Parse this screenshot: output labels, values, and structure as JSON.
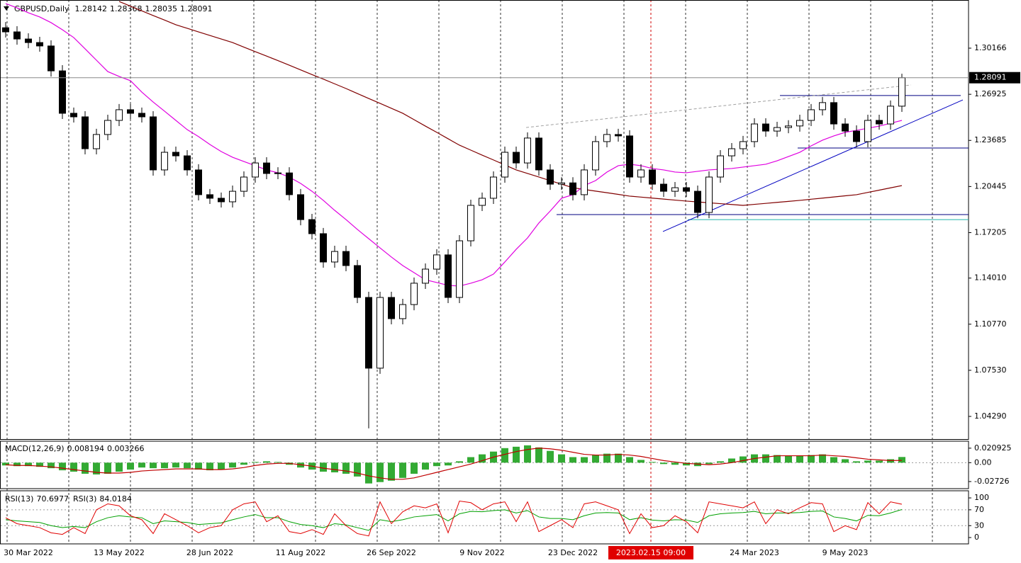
{
  "chart_data": [
    {
      "type": "candlestick",
      "title": "GBPUSD,Daily",
      "header_ohlc": [
        1.28142,
        1.28368,
        1.28035,
        1.28091
      ],
      "crosshair": "2023.02.15 09:00",
      "categories": [
        null,
        null,
        "30 Mar 2022",
        null,
        null,
        null,
        null,
        null,
        null,
        null,
        "13 May 2022",
        null,
        null,
        null,
        null,
        null,
        null,
        null,
        "28 Jun 2022",
        null,
        null,
        null,
        null,
        null,
        null,
        null,
        "11 Aug 2022",
        null,
        null,
        null,
        null,
        null,
        null,
        null,
        "26 Sep 2022",
        null,
        null,
        null,
        null,
        null,
        null,
        null,
        "9 Nov 2022",
        null,
        null,
        null,
        null,
        null,
        null,
        null,
        "23 Dec 2022",
        null,
        null,
        null,
        null,
        null,
        null,
        null,
        null,
        null,
        null,
        null,
        null,
        null,
        null,
        null,
        "24 Mar 2023",
        null,
        null,
        null,
        null,
        null,
        null,
        null,
        "9 May 2023",
        null,
        null,
        null,
        null,
        null
      ],
      "open": [
        1.316,
        1.3131,
        1.3081,
        1.3056,
        1.3032,
        1.2857,
        1.2559,
        1.2534,
        1.231,
        1.241,
        1.2509,
        1.2584,
        1.2559,
        1.2534,
        1.2161,
        1.2285,
        1.226,
        1.2161,
        1.1987,
        1.1962,
        1.1937,
        1.2011,
        1.2111,
        1.221,
        1.2136,
        1.214,
        1.1987,
        1.1812,
        1.1713,
        1.1514,
        1.1588,
        1.1489,
        1.1265,
        1.0768,
        1.1265,
        1.1116,
        1.1215,
        1.1365,
        1.1464,
        1.1564,
        1.1265,
        1.1663,
        1.1912,
        1.1962,
        1.2111,
        1.2285,
        1.221,
        1.2385,
        1.2161,
        1.2061,
        1.207,
        1.1987,
        1.2161,
        1.236,
        1.241,
        1.24,
        1.2111,
        1.2161,
        1.2061,
        1.2011,
        1.2036,
        1.2011,
        1.1862,
        1.2111,
        1.226,
        1.231,
        1.236,
        1.2484,
        1.2434,
        1.2459,
        1.247,
        1.2509,
        1.2584,
        1.2634,
        1.2484,
        1.2434,
        1.236,
        1.2509,
        1.2484,
        1.2609
      ],
      "high": [
        1.32,
        1.3171,
        1.3121,
        1.3096,
        1.3072,
        1.2897,
        1.2599,
        1.2574,
        1.245,
        1.2549,
        1.2624,
        1.2624,
        1.2599,
        1.2574,
        1.2325,
        1.2325,
        1.23,
        1.2201,
        1.2027,
        1.2002,
        1.2051,
        1.2151,
        1.225,
        1.225,
        1.218,
        1.218,
        1.2027,
        1.1852,
        1.1753,
        1.1628,
        1.1628,
        1.1529,
        1.1305,
        1.1305,
        1.1305,
        1.1255,
        1.1405,
        1.1504,
        1.1604,
        1.1604,
        1.1703,
        1.1952,
        1.2002,
        1.2151,
        1.2325,
        1.2325,
        1.2425,
        1.2425,
        1.2201,
        1.211,
        1.211,
        1.2201,
        1.24,
        1.245,
        1.245,
        1.244,
        1.2201,
        1.2201,
        1.2101,
        1.2076,
        1.2076,
        1.2051,
        1.2151,
        1.23,
        1.235,
        1.24,
        1.2524,
        1.2524,
        1.2499,
        1.251,
        1.2549,
        1.2624,
        1.2674,
        1.2674,
        1.2524,
        1.2474,
        1.2549,
        1.2549,
        1.2649,
        1.28368
      ],
      "low": [
        1.3091,
        1.3041,
        1.3016,
        1.2992,
        1.2817,
        1.2519,
        1.2494,
        1.227,
        1.227,
        1.237,
        1.2469,
        1.2519,
        1.2494,
        1.2121,
        1.2121,
        1.222,
        1.2121,
        1.1947,
        1.1922,
        1.1897,
        1.1897,
        1.1971,
        1.2071,
        1.2096,
        1.2096,
        1.1947,
        1.1772,
        1.1673,
        1.1474,
        1.1474,
        1.1449,
        1.1225,
        1.0345,
        1.0728,
        1.1076,
        1.1076,
        1.1175,
        1.1325,
        1.1424,
        1.1225,
        1.1225,
        1.1623,
        1.1872,
        1.1922,
        1.2071,
        1.217,
        1.217,
        1.2121,
        1.2021,
        1.2021,
        1.1947,
        1.1947,
        1.2121,
        1.232,
        1.236,
        1.2071,
        1.2071,
        1.2021,
        1.1971,
        1.1971,
        1.1971,
        1.1822,
        1.1822,
        1.2071,
        1.222,
        1.227,
        1.232,
        1.2394,
        1.2394,
        1.2419,
        1.243,
        1.2469,
        1.2544,
        1.2444,
        1.2394,
        1.232,
        1.232,
        1.2444,
        1.2444,
        1.2569
      ],
      "close": [
        1.3131,
        1.3081,
        1.3056,
        1.3032,
        1.2857,
        1.2559,
        1.2534,
        1.231,
        1.241,
        1.2509,
        1.2584,
        1.2559,
        1.2534,
        1.2161,
        1.2285,
        1.226,
        1.2161,
        1.1987,
        1.1962,
        1.1937,
        1.2011,
        1.2111,
        1.221,
        1.2136,
        1.214,
        1.1987,
        1.1812,
        1.1713,
        1.1514,
        1.1588,
        1.1489,
        1.1265,
        1.0768,
        1.1265,
        1.1116,
        1.1215,
        1.1365,
        1.1464,
        1.1564,
        1.1265,
        1.1663,
        1.1912,
        1.1962,
        1.2111,
        1.2285,
        1.221,
        1.2385,
        1.2161,
        1.2061,
        1.207,
        1.1987,
        1.2161,
        1.236,
        1.241,
        1.24,
        1.2111,
        1.2161,
        1.2061,
        1.2011,
        1.2036,
        1.2011,
        1.1862,
        1.2111,
        1.226,
        1.231,
        1.236,
        1.2484,
        1.2434,
        1.2459,
        1.247,
        1.2509,
        1.2584,
        1.2634,
        1.2484,
        1.2434,
        1.236,
        1.2509,
        1.2484,
        1.2609,
        1.28091
      ],
      "series": [
        {
          "color": "#800000",
          "values": [
            null,
            null,
            null,
            null,
            null,
            null,
            null,
            null,
            null,
            null,
            1.3345,
            1.3312,
            1.3279,
            1.3246,
            1.3214,
            1.3181,
            1.3156,
            1.3131,
            1.3106,
            1.3081,
            1.3056,
            1.3024,
            1.2992,
            1.2961,
            1.2929,
            1.2897,
            1.2864,
            1.2831,
            1.2799,
            1.2766,
            1.2733,
            1.2698,
            1.2663,
            1.2629,
            1.2594,
            1.2559,
            1.2514,
            1.2469,
            1.2425,
            1.238,
            1.2335,
            1.23,
            1.2265,
            1.2231,
            1.2196,
            1.2161,
            1.2136,
            1.2111,
            1.2086,
            1.2061,
            1.2036,
            1.2024,
            1.2012,
            1.2001,
            1.1989,
            1.1977,
            1.197,
            1.1963,
            1.1956,
            1.1949,
            1.1942,
            1.1936,
            1.193,
            1.1924,
            1.1918,
            1.1912,
            1.1919,
            1.1926,
            1.1933,
            1.194,
            1.1947,
            1.1955,
            1.1963,
            1.1971,
            1.1979,
            1.1987,
            1.2003,
            1.2019,
            1.2035,
            1.2051
          ]
        },
        {
          "color": "#e000e0",
          "values": [
            1.333,
            1.33,
            1.3265,
            1.3236,
            1.3196,
            1.3146,
            1.3091,
            1.3012,
            1.2932,
            1.2852,
            1.2818,
            1.2788,
            1.2708,
            1.2638,
            1.2574,
            1.2509,
            1.2444,
            1.2395,
            1.234,
            1.229,
            1.225,
            1.222,
            1.2191,
            1.2161,
            1.2141,
            1.2111,
            1.2066,
            1.2011,
            1.1947,
            1.1877,
            1.1812,
            1.1743,
            1.1678,
            1.1613,
            1.1549,
            1.1489,
            1.1439,
            1.1389,
            1.137,
            1.135,
            1.1345,
            1.1365,
            1.1389,
            1.1429,
            1.1514,
            1.1603,
            1.1683,
            1.1788,
            1.1872,
            1.1962,
            1.1987,
            1.2051,
            1.2086,
            1.2146,
            1.2191,
            1.2201,
            1.2191,
            1.2171,
            1.2161,
            1.2146,
            1.2141,
            1.2151,
            1.2161,
            1.2166,
            1.2171,
            1.2181,
            1.2191,
            1.2201,
            1.2225,
            1.2255,
            1.2285,
            1.233,
            1.237,
            1.24,
            1.2425,
            1.2439,
            1.2454,
            1.2469,
            1.2489,
            1.2509
          ]
        }
      ],
      "levels": [
        {
          "value": 1.2684,
          "color": "#000080"
        },
        {
          "value": 1.2315,
          "color": "#000080"
        },
        {
          "value": 1.1847,
          "color": "#000080"
        },
        {
          "value": 1.1812,
          "color": "#20b2aa"
        }
      ],
      "trendlines": [
        {
          "values": [
            1.1728,
            1.2653
          ],
          "color": "#0000c0",
          "dashed": false
        },
        {
          "values": [
            1.2459,
            1.2758
          ],
          "color": "#a0a0a0",
          "dashed": true
        }
      ],
      "last_price": 1.28091,
      "ylim": [
        1.02698,
        1.3355
      ],
      "yticks": [
        1.30166,
        1.26925,
        1.23685,
        1.20445,
        1.17205,
        {
          "value": 1.1401,
          "label": "1.14010"
        },
        {
          "value": 1.1077,
          "label": "1.10770"
        },
        {
          "value": 1.0753,
          "label": "1.07530"
        },
        {
          "value": 1.0429,
          "label": "1.04290"
        }
      ]
    },
    {
      "type": "macd",
      "title": "MACD(12,26,9)",
      "readouts": [
        0.008194,
        0.003266
      ],
      "hist_color": "#33aa33",
      "signal_color": "#c00000",
      "values": [
        -0.004,
        -0.005,
        -0.005,
        -0.006,
        -0.008,
        -0.011,
        -0.013,
        -0.016,
        -0.017,
        -0.016,
        -0.013,
        -0.01,
        -0.007,
        -0.008,
        -0.008,
        -0.007,
        -0.008,
        -0.01,
        -0.011,
        -0.01,
        -0.007,
        -0.003,
        0.001,
        0.002,
        0.001,
        -0.003,
        -0.007,
        -0.01,
        -0.013,
        -0.014,
        -0.016,
        -0.02,
        -0.03,
        -0.028,
        -0.026,
        -0.022,
        -0.016,
        -0.01,
        -0.005,
        -0.004,
        0.002,
        0.008,
        0.012,
        0.016,
        0.021,
        0.023,
        0.025,
        0.022,
        0.017,
        0.012,
        0.008,
        0.008,
        0.011,
        0.013,
        0.013,
        0.008,
        0.004,
        0.001,
        -0.002,
        -0.003,
        -0.004,
        -0.005,
        -0.002,
        0.002,
        0.006,
        0.009,
        0.012,
        0.012,
        0.011,
        0.01,
        0.01,
        0.011,
        0.012,
        0.008,
        0.005,
        0.002,
        0.003,
        0.003,
        0.005,
        0.008194
      ],
      "signal": [
        -0.003,
        -0.004,
        -0.004,
        -0.005,
        -0.006,
        -0.008,
        -0.01,
        -0.012,
        -0.014,
        -0.015,
        -0.015,
        -0.014,
        -0.012,
        -0.011,
        -0.01,
        -0.009,
        -0.009,
        -0.009,
        -0.01,
        -0.01,
        -0.009,
        -0.007,
        -0.004,
        -0.002,
        -0.001,
        -0.001,
        -0.003,
        -0.005,
        -0.008,
        -0.01,
        -0.012,
        -0.015,
        -0.019,
        -0.022,
        -0.024,
        -0.024,
        -0.022,
        -0.018,
        -0.014,
        -0.01,
        -0.006,
        -0.002,
        0.003,
        0.008,
        0.012,
        0.016,
        0.019,
        0.021,
        0.02,
        0.018,
        0.015,
        0.012,
        0.011,
        0.011,
        0.012,
        0.011,
        0.009,
        0.006,
        0.003,
        0.001,
        -0.001,
        -0.002,
        -0.003,
        -0.002,
        0.0,
        0.003,
        0.006,
        0.008,
        0.01,
        0.01,
        0.01,
        0.01,
        0.011,
        0.01,
        0.009,
        0.007,
        0.005,
        0.004,
        0.003,
        0.003266
      ],
      "levels": [
        0
      ],
      "ylim": [
        -0.0375,
        0.031
      ],
      "yticks": [
        0.020925,
        {
          "value": 0,
          "label": "0.00"
        },
        -0.02726
      ]
    },
    {
      "type": "line",
      "levels": [
        70,
        30
      ],
      "series": [
        {
          "name": "RSI(13)",
          "readout": 70.6977,
          "color": "#00a000",
          "values": [
            45,
            42,
            40,
            38,
            30,
            25,
            28,
            25,
            40,
            50,
            55,
            52,
            50,
            35,
            42,
            40,
            38,
            33,
            35,
            37,
            45,
            52,
            58,
            50,
            50,
            40,
            33,
            30,
            25,
            35,
            32,
            25,
            18,
            45,
            40,
            45,
            52,
            55,
            58,
            42,
            60,
            66,
            65,
            68,
            70,
            62,
            68,
            52,
            48,
            48,
            45,
            55,
            62,
            63,
            62,
            45,
            50,
            44,
            42,
            45,
            44,
            38,
            55,
            60,
            62,
            63,
            66,
            60,
            62,
            62,
            63,
            66,
            67,
            52,
            48,
            42,
            56,
            55,
            62,
            70.6977
          ]
        },
        {
          "name": "RSI(3)",
          "readout": 84.0184,
          "color": "#e00000",
          "values": [
            50,
            35,
            30,
            25,
            12,
            8,
            25,
            10,
            70,
            85,
            80,
            55,
            45,
            10,
            60,
            45,
            30,
            12,
            25,
            30,
            70,
            85,
            90,
            40,
            55,
            15,
            10,
            20,
            8,
            60,
            30,
            10,
            4,
            90,
            35,
            65,
            80,
            75,
            85,
            12,
            92,
            88,
            70,
            85,
            90,
            40,
            90,
            15,
            30,
            45,
            25,
            85,
            90,
            80,
            70,
            10,
            60,
            25,
            30,
            55,
            40,
            12,
            90,
            85,
            80,
            75,
            90,
            35,
            70,
            60,
            75,
            88,
            85,
            15,
            30,
            20,
            88,
            60,
            90,
            84.0184
          ]
        }
      ],
      "ylim": [
        -16,
        118
      ],
      "yticks": [
        100,
        70,
        30,
        0
      ]
    }
  ]
}
